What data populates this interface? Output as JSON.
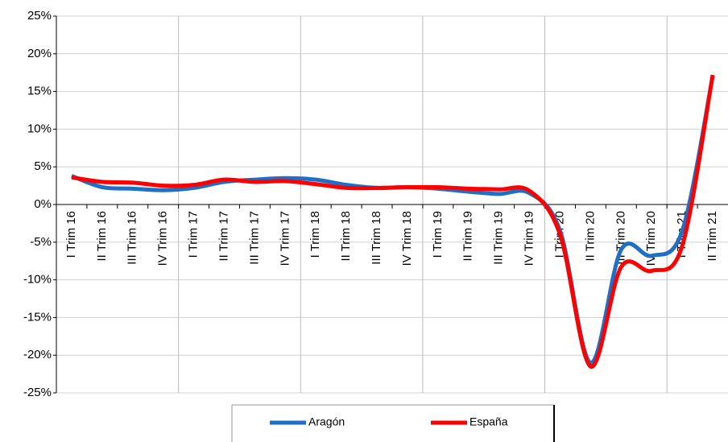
{
  "chart_data": {
    "type": "line",
    "categories": [
      "I Trim 16",
      "II Trim 16",
      "III Trim 16",
      "IV Trim 16",
      "I Trim 17",
      "II Trim 17",
      "III Trim 17",
      "IV Trim 17",
      "I Trim 18",
      "II Trim 18",
      "III Trim 18",
      "IV Trim 18",
      "I Trim 19",
      "II Trim 19",
      "III Trim 19",
      "IV Trim 19",
      "I Trim 20",
      "II Trim 20",
      "III Trim 20",
      "IV Trim 20",
      "I Trim 21",
      "II Trim 21"
    ],
    "series": [
      {
        "name": "Aragón",
        "color": "#1f6fc5",
        "values": [
          3.8,
          2.3,
          2.1,
          1.9,
          2.2,
          3.0,
          3.3,
          3.5,
          3.3,
          2.6,
          2.2,
          2.3,
          2.1,
          1.7,
          1.4,
          1.5,
          -3.5,
          -21,
          -6,
          -6.8,
          -3.5,
          17
        ]
      },
      {
        "name": "España",
        "color": "#ff0000",
        "values": [
          3.6,
          3.0,
          2.9,
          2.5,
          2.6,
          3.3,
          3.0,
          3.1,
          2.7,
          2.2,
          2.2,
          2.3,
          2.3,
          2.1,
          2.0,
          1.8,
          -4,
          -21.5,
          -8.3,
          -8.8,
          -5.5,
          17.2
        ]
      }
    ],
    "ylim": [
      -25,
      25
    ],
    "yticks": [
      {
        "value": -25,
        "label": "-25%"
      },
      {
        "value": -20,
        "label": "-20%"
      },
      {
        "value": -15,
        "label": "-15%"
      },
      {
        "value": -10,
        "label": "-10%"
      },
      {
        "value": -5,
        "label": "-5%"
      },
      {
        "value": 0,
        "label": "0%"
      },
      {
        "value": 5,
        "label": "5%"
      },
      {
        "value": 10,
        "label": "10%"
      },
      {
        "value": 15,
        "label": "15%"
      },
      {
        "value": 20,
        "label": "20%"
      },
      {
        "value": 25,
        "label": "25%"
      }
    ],
    "grid": true,
    "legend": "bottom"
  }
}
